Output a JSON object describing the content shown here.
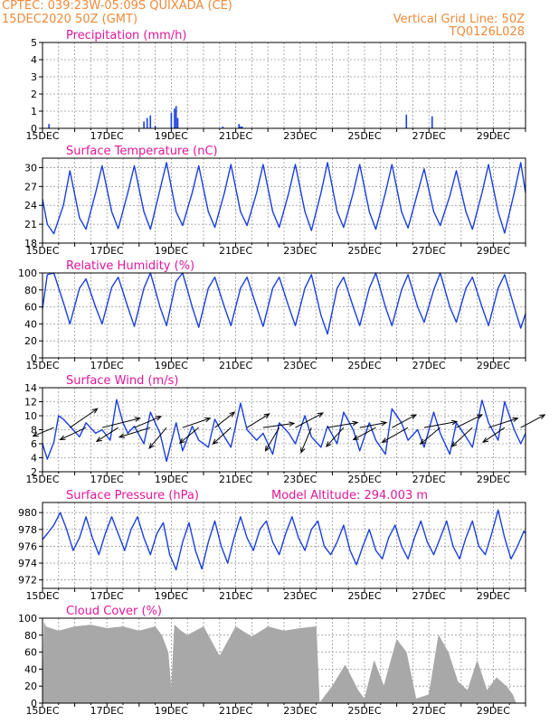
{
  "header": {
    "line1": "CPTEC:   039:23W-05:09S   QUIXADA (CE)",
    "line2": "15DEC2020 50Z (GMT)",
    "right1": "Vertical Grid Line: 50Z",
    "right2": "TQ0126L028"
  },
  "colors": {
    "header": "#ee8a3a",
    "title": "#e0179a",
    "series": "#1a3fe0",
    "cloud": "#a8a8a8",
    "arrow": "#000000"
  },
  "x_ticks": [
    "15DEC",
    "17DEC",
    "19DEC",
    "21DEC",
    "23DEC",
    "25DEC",
    "27DEC",
    "29DEC"
  ],
  "chart_data": [
    {
      "id": "precip",
      "type": "bar",
      "title": "Precipitation (mm/h)",
      "x_unit": "days since 15DEC 00Z",
      "x": [
        0.2,
        3.15,
        3.25,
        3.35,
        3.5,
        4.0,
        4.1,
        4.15,
        4.2,
        5.6,
        6.1,
        6.15,
        6.2,
        11.3,
        12.1
      ],
      "values": [
        0.25,
        0.4,
        0.6,
        0.75,
        0.15,
        0.9,
        1.15,
        1.3,
        0.6,
        0.1,
        0.25,
        0.12,
        0.1,
        0.8,
        0.7
      ],
      "xlim": [
        0,
        15
      ],
      "ylim": [
        0,
        5
      ],
      "yticks": [
        0,
        1,
        2,
        3,
        4,
        5
      ]
    },
    {
      "id": "temp",
      "type": "line",
      "title": "Surface Temperature (nC)",
      "x_unit": "days since 15DEC 00Z",
      "x": [
        0,
        0.15,
        0.35,
        0.65,
        0.85,
        1.15,
        1.35,
        1.65,
        1.85,
        2.15,
        2.35,
        2.65,
        2.85,
        3.15,
        3.35,
        3.65,
        3.85,
        4.15,
        4.35,
        4.65,
        4.85,
        5.15,
        5.35,
        5.65,
        5.85,
        6.15,
        6.35,
        6.65,
        6.85,
        7.15,
        7.35,
        7.65,
        7.85,
        8.15,
        8.35,
        8.65,
        8.85,
        9.15,
        9.35,
        9.65,
        9.85,
        10.15,
        10.35,
        10.65,
        10.85,
        11.15,
        11.35,
        11.65,
        11.85,
        12.15,
        12.35,
        12.65,
        12.85,
        13.15,
        13.35,
        13.65,
        13.85,
        14.15,
        14.35,
        14.65,
        14.85,
        15.0
      ],
      "values": [
        25,
        21,
        19.5,
        24,
        29.5,
        22,
        20.2,
        26,
        30.3,
        23,
        20.3,
        26,
        30.3,
        23,
        20.2,
        26.5,
        30.8,
        23,
        20.8,
        26,
        30.3,
        23,
        20.5,
        26,
        30.5,
        23,
        20.8,
        26,
        30.5,
        23,
        20.5,
        26,
        30.5,
        23,
        20.0,
        26,
        30.8,
        23,
        20.5,
        26,
        30.5,
        23,
        20.2,
        26,
        30.5,
        23,
        20.4,
        26,
        29.8,
        23,
        20.8,
        25.5,
        29.5,
        23,
        20.2,
        26,
        30.5,
        23,
        19.6,
        26,
        30.8,
        26
      ],
      "xlim": [
        0,
        15
      ],
      "ylim": [
        18,
        31.5
      ],
      "yticks": [
        18,
        21,
        24,
        27,
        30
      ],
      "ytick_labels": [
        "18",
        "21",
        "24",
        "27",
        "30"
      ]
    },
    {
      "id": "rh",
      "type": "line",
      "title": "Relative Humidity (%)",
      "x_unit": "days since 15DEC 00Z",
      "x": [
        0,
        0.15,
        0.35,
        0.65,
        0.85,
        1.15,
        1.35,
        1.65,
        1.85,
        2.15,
        2.35,
        2.65,
        2.85,
        3.15,
        3.35,
        3.65,
        3.85,
        4.15,
        4.35,
        4.65,
        4.85,
        5.15,
        5.35,
        5.65,
        5.85,
        6.15,
        6.35,
        6.65,
        6.85,
        7.15,
        7.35,
        7.65,
        7.85,
        8.15,
        8.35,
        8.65,
        8.85,
        9.15,
        9.35,
        9.65,
        9.85,
        10.15,
        10.35,
        10.65,
        10.85,
        11.15,
        11.35,
        11.65,
        11.85,
        12.15,
        12.35,
        12.65,
        12.85,
        13.15,
        13.35,
        13.65,
        13.85,
        14.15,
        14.35,
        14.65,
        14.85,
        15.0
      ],
      "values": [
        58,
        98,
        100,
        65,
        40,
        82,
        93,
        60,
        40,
        83,
        95,
        60,
        37,
        82,
        100,
        60,
        38,
        90,
        100,
        60,
        36,
        82,
        95,
        60,
        38,
        82,
        95,
        60,
        37,
        82,
        95,
        60,
        38,
        82,
        98,
        50,
        28,
        82,
        95,
        60,
        38,
        82,
        100,
        60,
        38,
        80,
        98,
        60,
        42,
        80,
        100,
        60,
        42,
        82,
        95,
        60,
        38,
        82,
        98,
        60,
        35,
        52
      ],
      "xlim": [
        0,
        15
      ],
      "ylim": [
        0,
        100
      ],
      "yticks": [
        0,
        20,
        40,
        60,
        80,
        100
      ]
    },
    {
      "id": "wind",
      "type": "line",
      "title": "Surface Wind (m/s)",
      "x_unit": "days since 15DEC 00Z",
      "x": [
        0,
        0.15,
        0.35,
        0.5,
        0.65,
        0.85,
        1.15,
        1.35,
        1.65,
        1.85,
        2.1,
        2.3,
        2.5,
        2.65,
        2.85,
        3.15,
        3.35,
        3.65,
        3.85,
        4.15,
        4.35,
        4.65,
        4.85,
        5.15,
        5.35,
        5.65,
        5.85,
        6.15,
        6.35,
        6.65,
        6.85,
        7.15,
        7.35,
        7.65,
        7.85,
        8.15,
        8.35,
        8.65,
        8.85,
        9.15,
        9.35,
        9.65,
        9.85,
        10.15,
        10.35,
        10.65,
        10.85,
        11.15,
        11.35,
        11.65,
        11.85,
        12.15,
        12.35,
        12.65,
        12.85,
        13.15,
        13.35,
        13.65,
        13.85,
        14.15,
        14.35,
        14.65,
        14.85,
        15.0
      ],
      "values": [
        6,
        3.8,
        6.2,
        10,
        9.5,
        8.5,
        7,
        9,
        7.5,
        8,
        6.5,
        12.3,
        9,
        7.5,
        8.5,
        6,
        10.5,
        7.5,
        3.5,
        9,
        5,
        8.5,
        6.5,
        5.5,
        9.5,
        7,
        5.5,
        11.8,
        8,
        6.5,
        7.5,
        4.5,
        9,
        7.5,
        6,
        10,
        7,
        5.5,
        8.5,
        6,
        10.5,
        8,
        5,
        9,
        6.5,
        4.5,
        11,
        9,
        6.5,
        8,
        5.5,
        10.5,
        7.5,
        4.5,
        9,
        7,
        5.5,
        12.2,
        9,
        6.5,
        12,
        8,
        6,
        7.5
      ],
      "xlim": [
        0,
        15
      ],
      "ylim": [
        2,
        14
      ],
      "yticks": [
        2,
        4,
        6,
        8,
        10,
        12,
        14
      ],
      "vectors": [
        {
          "x": 0.35,
          "u": -2.4,
          "v": -1.0
        },
        {
          "x": 0.85,
          "u": 3.2,
          "v": 2.2
        },
        {
          "x": 1.35,
          "u": -3.0,
          "v": -1.4
        },
        {
          "x": 1.85,
          "u": 4.4,
          "v": 1.1
        },
        {
          "x": 2.35,
          "u": -2.5,
          "v": -1.6
        },
        {
          "x": 2.85,
          "u": 3.1,
          "v": 1.3
        },
        {
          "x": 3.35,
          "u": -3.6,
          "v": -1.1
        },
        {
          "x": 3.85,
          "u": -2.0,
          "v": -2.4
        },
        {
          "x": 4.35,
          "u": 3.2,
          "v": 1.1
        },
        {
          "x": 4.85,
          "u": -2.2,
          "v": -1.8
        },
        {
          "x": 5.35,
          "u": 2.3,
          "v": 1.8
        },
        {
          "x": 5.85,
          "u": -2.1,
          "v": -1.9
        },
        {
          "x": 6.35,
          "u": 2.6,
          "v": 1.6
        },
        {
          "x": 6.85,
          "u": 3.6,
          "v": 0.5
        },
        {
          "x": 7.35,
          "u": -1.6,
          "v": -2.7
        },
        {
          "x": 7.85,
          "u": 3.2,
          "v": 1.7
        },
        {
          "x": 8.35,
          "u": -1.2,
          "v": -2.9
        },
        {
          "x": 8.85,
          "u": 3.5,
          "v": 0.6
        },
        {
          "x": 9.35,
          "u": -2.0,
          "v": -2.2
        },
        {
          "x": 9.85,
          "u": 3.1,
          "v": 0.6
        },
        {
          "x": 10.35,
          "u": -2.6,
          "v": -1.4
        },
        {
          "x": 10.85,
          "u": 2.8,
          "v": 1.5
        },
        {
          "x": 11.35,
          "u": -3.0,
          "v": -1.7
        },
        {
          "x": 11.85,
          "u": 3.8,
          "v": 0.7
        },
        {
          "x": 12.35,
          "u": -2.3,
          "v": -1.9
        },
        {
          "x": 12.85,
          "u": 3.0,
          "v": 1.5
        },
        {
          "x": 13.35,
          "u": -2.4,
          "v": -2.2
        },
        {
          "x": 13.85,
          "u": 3.4,
          "v": 1.1
        },
        {
          "x": 14.35,
          "u": -2.5,
          "v": -1.7
        },
        {
          "x": 14.85,
          "u": 2.8,
          "v": 1.5
        }
      ]
    },
    {
      "id": "pres",
      "type": "line",
      "title": "Surface Pressure (hPa)",
      "annotation": "Model Altitude: 294.003 m",
      "x_unit": "days since 15DEC 00Z",
      "x": [
        0,
        0.15,
        0.35,
        0.55,
        0.75,
        0.95,
        1.15,
        1.35,
        1.55,
        1.75,
        1.95,
        2.15,
        2.35,
        2.55,
        2.75,
        2.95,
        3.15,
        3.35,
        3.55,
        3.75,
        3.95,
        4.15,
        4.35,
        4.55,
        4.75,
        4.95,
        5.15,
        5.35,
        5.55,
        5.75,
        5.95,
        6.15,
        6.35,
        6.55,
        6.75,
        6.95,
        7.15,
        7.35,
        7.55,
        7.75,
        7.95,
        8.15,
        8.35,
        8.55,
        8.75,
        8.95,
        9.15,
        9.35,
        9.55,
        9.75,
        9.95,
        10.15,
        10.35,
        10.55,
        10.75,
        10.95,
        11.15,
        11.35,
        11.55,
        11.75,
        11.95,
        12.15,
        12.35,
        12.55,
        12.75,
        12.95,
        13.15,
        13.35,
        13.55,
        13.75,
        13.95,
        14.15,
        14.35,
        14.55,
        14.75,
        14.95,
        15.0
      ],
      "values": [
        976.8,
        977.5,
        978.5,
        980.0,
        978.0,
        975.5,
        977.0,
        979.5,
        977.0,
        975.0,
        977.5,
        979.5,
        977.5,
        975.5,
        978.0,
        979.5,
        977.0,
        975.0,
        977.5,
        978.8,
        975.0,
        973.2,
        976.5,
        978.8,
        975.5,
        973.3,
        976.5,
        979.0,
        976.0,
        974.0,
        977.0,
        979.5,
        977.0,
        975.5,
        978.0,
        979.0,
        976.5,
        975.0,
        977.5,
        979.5,
        977.0,
        975.5,
        978.0,
        979.0,
        976.0,
        975.0,
        976.5,
        978.5,
        975.5,
        973.8,
        976.0,
        978.0,
        975.5,
        974.5,
        977.0,
        978.5,
        976.0,
        974.5,
        977.0,
        979.0,
        976.5,
        975.0,
        977.0,
        979.0,
        976.0,
        974.5,
        977.0,
        979.0,
        976.0,
        975.0,
        977.5,
        980.3,
        977.0,
        974.5,
        976.0,
        977.8,
        977.5
      ],
      "xlim": [
        0,
        15
      ],
      "ylim": [
        971,
        981.2
      ],
      "yticks": [
        972,
        974,
        976,
        978,
        980
      ]
    },
    {
      "id": "cloud",
      "type": "area",
      "title": "Cloud Cover (%)",
      "x_unit": "days since 15DEC 00Z",
      "x": [
        0,
        0.05,
        0.1,
        0.5,
        1.0,
        1.5,
        2.0,
        2.5,
        3.0,
        3.5,
        3.7,
        3.9,
        4.0,
        4.1,
        4.3,
        4.5,
        5.0,
        5.5,
        6.0,
        6.5,
        7.0,
        7.5,
        8.0,
        8.5,
        8.6,
        9.0,
        9.4,
        9.8,
        10.0,
        10.3,
        10.6,
        11.0,
        11.3,
        11.6,
        12.0,
        12.3,
        12.6,
        12.9,
        13.2,
        13.5,
        13.8,
        14.1,
        14.4,
        14.6,
        14.7,
        15.0
      ],
      "values": [
        0,
        95,
        90,
        85,
        90,
        92,
        88,
        90,
        85,
        90,
        80,
        60,
        15,
        92,
        85,
        80,
        90,
        55,
        90,
        78,
        90,
        85,
        88,
        90,
        0,
        20,
        45,
        15,
        5,
        50,
        20,
        75,
        60,
        5,
        10,
        80,
        60,
        25,
        15,
        50,
        15,
        30,
        20,
        10,
        0,
        0
      ],
      "xlim": [
        0,
        15
      ],
      "ylim": [
        0,
        100
      ],
      "yticks": [
        0,
        20,
        40,
        60,
        80,
        100
      ]
    }
  ]
}
